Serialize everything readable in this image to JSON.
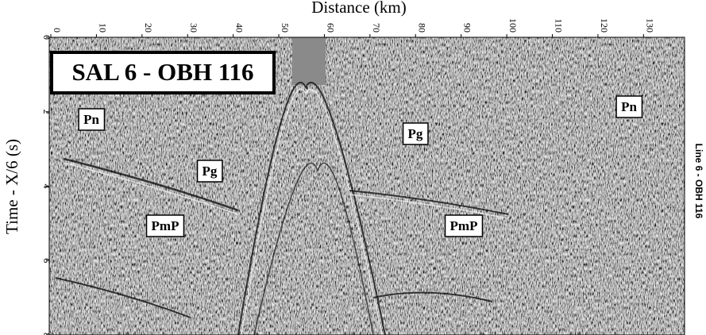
{
  "chart_data": {
    "type": "seismic",
    "x_label": "Distance (km)",
    "y_label": "Time - X/6 (s)",
    "xlim": [
      0,
      139
    ],
    "ylim": [
      0,
      8
    ],
    "xticks": [
      0,
      10,
      20,
      30,
      40,
      50,
      60,
      70,
      80,
      90,
      100,
      110,
      120,
      130
    ],
    "yticks": [
      0,
      2,
      4,
      6,
      8
    ],
    "panel_label": "SAL 6 - OBH 116",
    "side_label": "Line 6 - OBH 116",
    "annotations": [
      "Pn",
      "Pg",
      "PmP",
      "Pg",
      "PmP",
      "Pn"
    ]
  }
}
